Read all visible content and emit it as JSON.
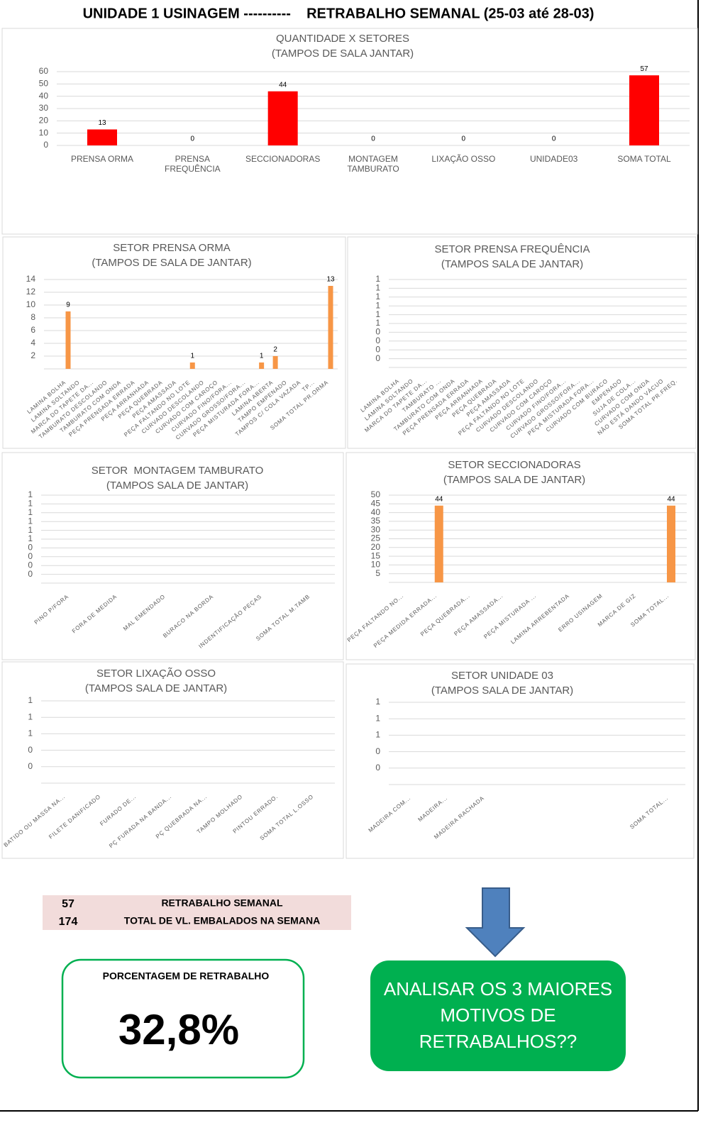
{
  "header": {
    "title": "UNIDADE 1 USINAGEM ----------    RETRABALHO SEMANAL (25-03 até 28-03)"
  },
  "chart_data": [
    {
      "type": "bar",
      "title": "QUANTIDADE X SETORES",
      "subtitle": "(TAMPOS DE SALA JANTAR)",
      "categories": [
        "PRENSA ORMA",
        "PRENSA FREQUÊNCIA",
        "SECCIONADORAS",
        "MONTAGEM TAMBURATO",
        "LIXAÇÃO OSSO",
        "UNIDADE03",
        "SOMA TOTAL"
      ],
      "values": [
        13,
        0,
        44,
        0,
        0,
        0,
        57
      ],
      "color": "#ff0000",
      "zero_labels": true,
      "ylim": [
        0,
        60
      ],
      "yticks": [
        0,
        10,
        20,
        30,
        40,
        50,
        60
      ],
      "grid": true
    },
    {
      "type": "bar",
      "title": "SETOR PRENSA ORMA",
      "subtitle": "(TAMPOS DE SALA DE JANTAR)",
      "categories": [
        "LAMINA BOLHA",
        "LAMINA SOLTANDO",
        "MARCA DO TAPETE DA...",
        "TAMBURATO DESCOLANDO",
        "TAMBURATO COM ONDA",
        "PEÇA PRENSADA ERRADA",
        "PEÇA ARRANHADA",
        "PEÇA QUEBRADA",
        "PEÇA AMASSADA",
        "PEÇA FALTANDO NO LOTE",
        "CURVADO DESCOLANDO",
        "CURVADO COM CAROÇO",
        "CURVADO FINO/FORA...",
        "CURVADO GROSSO/FORA...",
        "PEÇA MISTURADA FORA...",
        "LAMINA ABERTA",
        "TAMPO EMPENADO",
        "TAMPOS C/ COLA VAZADA",
        "TP...",
        "SOMA TOTAL PR.ORMA"
      ],
      "values": [
        9,
        0,
        0,
        0,
        0,
        0,
        0,
        0,
        0,
        1,
        0,
        0,
        0,
        0,
        1,
        2,
        0,
        0,
        0,
        13
      ],
      "color": "#f79646",
      "zero_labels": false,
      "ylim": [
        0,
        14
      ],
      "yticks": [
        2,
        4,
        6,
        8,
        10,
        12,
        14
      ],
      "grid": true
    },
    {
      "type": "bar",
      "title": "SETOR PRENSA FREQUÊNCIA",
      "subtitle": "(TAMPOS SALA DE JANTAR)",
      "categories": [
        "LAMINA BOLHA",
        "LAMINA SOLTANDO",
        "MARCA DO TAPETE DA...",
        "TAMBURATO ...",
        "TAMBURATO COM ONDA",
        "PEÇA PRENSADA ERRADA",
        "PEÇA ARRANHADA",
        "PEÇA QUEBRADA",
        "PEÇA AMASSADA",
        "PEÇA FALTANDO NO LOTE",
        "CURVADO DESCOLANDO",
        "CURVADO COM CAROÇO",
        "CURVADO FINO/FORA...",
        "CURVADO GROSSO/FORA...",
        "PEÇA MISTURADA FORA...",
        "CURVADO COM BURACO",
        "EMPENADO",
        "SUJA DE COLA...",
        "CURVADO COM ONDA",
        "NÃO ESTÁ DANDO VÁCUO",
        "SOMA TOTAL PR.FREQ."
      ],
      "values": [
        0,
        0,
        0,
        0,
        0,
        0,
        0,
        0,
        0,
        0,
        0,
        0,
        0,
        0,
        0,
        0,
        0,
        0,
        0,
        0,
        0
      ],
      "color": "#f79646",
      "zero_labels": false,
      "ylim": [
        0,
        1
      ],
      "yticks": [
        {
          "value": 0.1,
          "label": "0"
        },
        {
          "value": 0.2,
          "label": "0"
        },
        {
          "value": 0.3,
          "label": "0"
        },
        {
          "value": 0.4,
          "label": "0"
        },
        {
          "value": 0.5,
          "label": "1"
        },
        {
          "value": 0.6,
          "label": "1"
        },
        {
          "value": 0.7,
          "label": "1"
        },
        {
          "value": 0.8,
          "label": "1"
        },
        {
          "value": 0.9,
          "label": "1"
        },
        1
      ],
      "grid": true
    },
    {
      "type": "bar",
      "title": "SETOR  MONTAGEM TAMBURATO",
      "subtitle": "(TAMPOS SALA DE JANTAR)",
      "categories": [
        "PINO P/FORA",
        "FORA DE MEDIDA",
        "MAL EMENDADO",
        "BURACO NA BORDA",
        "INDENTIFICAÇÃO PEÇAS",
        "SOMA TOTAL M.TAMB"
      ],
      "values": [
        0,
        0,
        0,
        0,
        0,
        0
      ],
      "color": "#f79646",
      "zero_labels": false,
      "ylim": [
        0,
        1
      ],
      "yticks": [
        {
          "value": 0.1,
          "label": "0"
        },
        {
          "value": 0.2,
          "label": "0"
        },
        {
          "value": 0.3,
          "label": "0"
        },
        {
          "value": 0.4,
          "label": "0"
        },
        {
          "value": 0.5,
          "label": "1"
        },
        {
          "value": 0.6,
          "label": "1"
        },
        {
          "value": 0.7,
          "label": "1"
        },
        {
          "value": 0.8,
          "label": "1"
        },
        {
          "value": 0.9,
          "label": "1"
        },
        1
      ],
      "grid": true
    },
    {
      "type": "bar",
      "title": "SETOR SECCIONADORAS",
      "subtitle": "(TAMPOS SALA DE JANTAR)",
      "categories": [
        "PEÇA FALTANDO NO...",
        "PEÇA MEDIDA ERRADA...",
        "PEÇA QUEBRADA...",
        "PEÇA AMASSADA...",
        "PEÇA MISTURADA ...",
        "LAMINA ARREBENTADA",
        "ERRO USINAGEM",
        "MARCA DE GIZ",
        "SOMA TOTAL..."
      ],
      "values": [
        0,
        44,
        0,
        0,
        0,
        0,
        0,
        0,
        44
      ],
      "color": "#f79646",
      "zero_labels": false,
      "ylim": [
        0,
        50
      ],
      "yticks": [
        5,
        10,
        15,
        20,
        25,
        30,
        35,
        40,
        45,
        50
      ],
      "grid": true
    },
    {
      "type": "bar",
      "title": "SETOR LIXAÇÃO OSSO",
      "subtitle": "(TAMPOS SALA DE JANTAR)",
      "categories": [
        "BATIDO OU MASSA NA...",
        "FILETE DANIFICADO",
        "FURADO DE...",
        "PÇ FURADA NA BANDA...",
        "PÇ QUEBRADA NA...",
        "TAMPO MOLHADO",
        "PINTOU ERRADO.",
        "SOMA TOTAL L.OSSO"
      ],
      "values": [
        0,
        0,
        0,
        0,
        0,
        0,
        0,
        0
      ],
      "color": "#f79646",
      "zero_labels": false,
      "ylim": [
        0,
        1
      ],
      "yticks": [
        {
          "value": 0.2,
          "label": "0"
        },
        {
          "value": 0.4,
          "label": "0"
        },
        {
          "value": 0.6,
          "label": "1"
        },
        {
          "value": 0.8,
          "label": "1"
        },
        1
      ],
      "grid": true
    },
    {
      "type": "bar",
      "title": "SETOR UNIDADE 03",
      "subtitle": "(TAMPOS SALA DE JANTAR)",
      "categories": [
        "MADEIRA COM...",
        "MADEIRA...",
        "MADEIRA RACHADA",
        null,
        null,
        null,
        null,
        "SOMA TOTAL..."
      ],
      "values": [
        0,
        0,
        0,
        0,
        0,
        0,
        0,
        0
      ],
      "color": "#f79646",
      "zero_labels": false,
      "ylim": [
        0,
        1
      ],
      "yticks": [
        {
          "value": 0.2,
          "label": "0"
        },
        {
          "value": 0.4,
          "label": "0"
        },
        {
          "value": 0.6,
          "label": "1"
        },
        {
          "value": 0.8,
          "label": "1"
        },
        1
      ],
      "grid": true
    }
  ],
  "summary": {
    "rows": [
      {
        "value": 57,
        "label": "RETRABALHO SEMANAL"
      },
      {
        "value": 174,
        "label": "TOTAL DE VL. EMBALADOS NA SEMANA"
      }
    ]
  },
  "percentage": {
    "title": "PORCENTAGEM DE RETRABALHO",
    "value": "32,8%"
  },
  "callout": {
    "lines": [
      "ANALISAR OS 3 MAIORES",
      "MOTIVOS DE",
      "RETRABALHOS??"
    ]
  }
}
